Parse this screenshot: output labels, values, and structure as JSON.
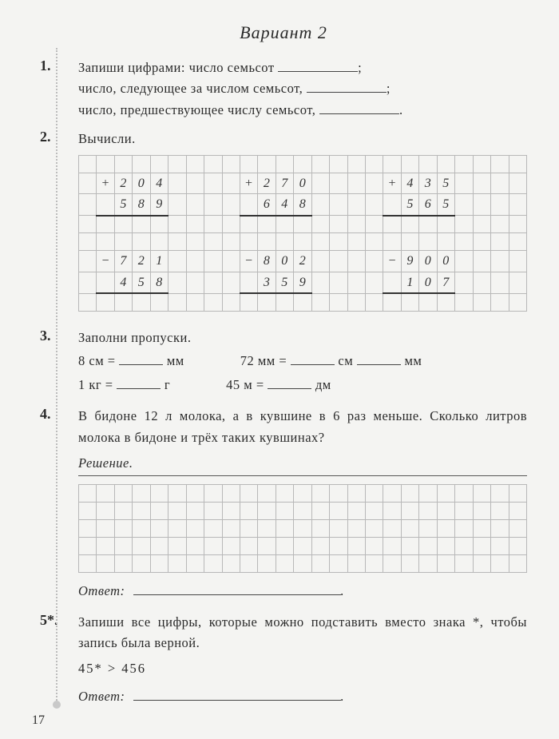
{
  "title": "Вариант 2",
  "pageNumber": "17",
  "tasks": {
    "t1": {
      "num": "1.",
      "line1a": "Запиши цифрами: число семьсот ",
      "line1b": ";",
      "line2a": "число, следующее за числом семьсот, ",
      "line2b": ";",
      "line3a": "число, предшествующее числу семьсот, ",
      "line3b": "."
    },
    "t2": {
      "num": "2.",
      "text": "Вычисли.",
      "problems": {
        "add": [
          {
            "op": "+",
            "a": [
              "2",
              "0",
              "4"
            ],
            "b": [
              "5",
              "8",
              "9"
            ]
          },
          {
            "op": "+",
            "a": [
              "2",
              "7",
              "0"
            ],
            "b": [
              "6",
              "4",
              "8"
            ]
          },
          {
            "op": "+",
            "a": [
              "4",
              "3",
              "5"
            ],
            "b": [
              "5",
              "6",
              "5"
            ]
          }
        ],
        "sub": [
          {
            "op": "−",
            "a": [
              "7",
              "2",
              "1"
            ],
            "b": [
              "4",
              "5",
              "8"
            ]
          },
          {
            "op": "−",
            "a": [
              "8",
              "0",
              "2"
            ],
            "b": [
              "3",
              "5",
              "9"
            ]
          },
          {
            "op": "−",
            "a": [
              "9",
              "0",
              "0"
            ],
            "b": [
              "1",
              "0",
              "7"
            ]
          }
        ]
      }
    },
    "t3": {
      "num": "3.",
      "text": "Заполни пропуски.",
      "rows": [
        {
          "l1": "8 см =",
          "l2": "мм",
          "r1": "72 мм =",
          "r2": "см",
          "r3": "мм"
        },
        {
          "l1": "1 кг =",
          "l2": "г",
          "r1": "45 м =",
          "r2": "дм",
          "r3": ""
        }
      ]
    },
    "t4": {
      "num": "4.",
      "text": "В бидоне 12 л молока, а в кувшине в 6 раз меньше. Сколько литров молока в бидоне и трёх таких кувшинах?",
      "solution": "Решение.",
      "answer": "Ответ:"
    },
    "t5": {
      "num": "5*.",
      "text": "Запиши все цифры, которые можно подставить вместо знака *, чтобы запись была верной.",
      "expr": "45* > 456",
      "answer": "Ответ:"
    }
  },
  "style": {
    "background": "#f4f4f2",
    "text_color": "#2a2a2a",
    "grid_color": "#b8b8b8",
    "dot_color": "#bdbdbd",
    "grid_cell": 22,
    "handwritten_font": "Comic Sans MS"
  }
}
